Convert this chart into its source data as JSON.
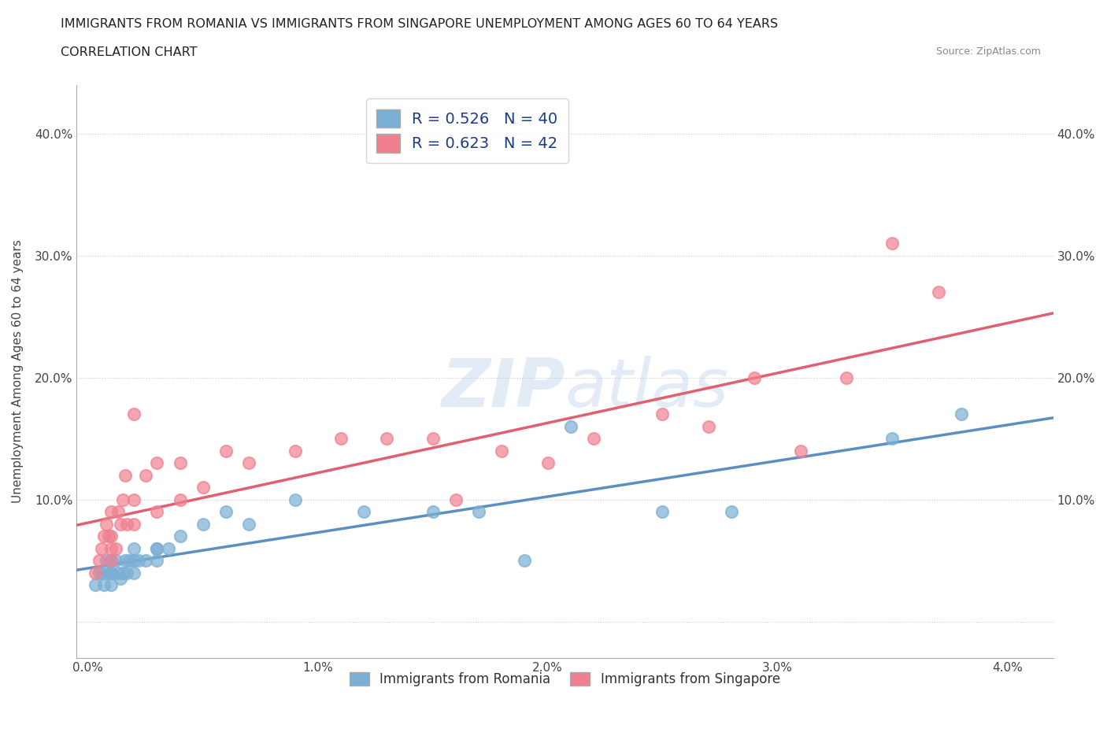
{
  "title_line1": "IMMIGRANTS FROM ROMANIA VS IMMIGRANTS FROM SINGAPORE UNEMPLOYMENT AMONG AGES 60 TO 64 YEARS",
  "title_line2": "CORRELATION CHART",
  "source": "Source: ZipAtlas.com",
  "ylabel": "Unemployment Among Ages 60 to 64 years",
  "xlim": [
    -0.0005,
    0.042
  ],
  "ylim": [
    -0.03,
    0.44
  ],
  "xticks": [
    0.0,
    0.01,
    0.02,
    0.03,
    0.04
  ],
  "xtick_labels": [
    "0.0%",
    "1.0%",
    "2.0%",
    "3.0%",
    "4.0%"
  ],
  "yticks": [
    0.0,
    0.1,
    0.2,
    0.3,
    0.4
  ],
  "ytick_labels": [
    "",
    "10.0%",
    "20.0%",
    "30.0%",
    "40.0%"
  ],
  "right_ytick_labels": [
    "",
    "10.0%",
    "20.0%",
    "30.0%",
    "40.0%"
  ],
  "romania_color": "#7bafd4",
  "singapore_color": "#f08090",
  "romania_line_color": "#5b8fc4",
  "singapore_line_color": "#e06070",
  "romania_R": 0.526,
  "romania_N": 40,
  "singapore_R": 0.623,
  "singapore_N": 42,
  "legend_text_color": "#1a3a8a",
  "romania_x": [
    0.0003,
    0.0005,
    0.0006,
    0.0007,
    0.0008,
    0.0009,
    0.001,
    0.001,
    0.001,
    0.001,
    0.0012,
    0.0013,
    0.0014,
    0.0015,
    0.0016,
    0.0017,
    0.0018,
    0.002,
    0.002,
    0.002,
    0.0022,
    0.0025,
    0.003,
    0.003,
    0.003,
    0.0035,
    0.004,
    0.005,
    0.006,
    0.007,
    0.009,
    0.012,
    0.015,
    0.017,
    0.019,
    0.021,
    0.025,
    0.028,
    0.035,
    0.038
  ],
  "romania_y": [
    0.03,
    0.04,
    0.04,
    0.03,
    0.05,
    0.04,
    0.04,
    0.05,
    0.03,
    0.04,
    0.05,
    0.04,
    0.035,
    0.04,
    0.05,
    0.04,
    0.05,
    0.05,
    0.04,
    0.06,
    0.05,
    0.05,
    0.06,
    0.05,
    0.06,
    0.06,
    0.07,
    0.08,
    0.09,
    0.08,
    0.1,
    0.09,
    0.09,
    0.09,
    0.05,
    0.16,
    0.09,
    0.09,
    0.15,
    0.17
  ],
  "singapore_x": [
    0.0003,
    0.0005,
    0.0006,
    0.0007,
    0.0008,
    0.0009,
    0.001,
    0.001,
    0.001,
    0.001,
    0.0012,
    0.0013,
    0.0014,
    0.0015,
    0.0016,
    0.0017,
    0.002,
    0.002,
    0.002,
    0.0025,
    0.003,
    0.003,
    0.004,
    0.004,
    0.005,
    0.006,
    0.007,
    0.009,
    0.011,
    0.013,
    0.015,
    0.016,
    0.018,
    0.02,
    0.022,
    0.025,
    0.027,
    0.029,
    0.031,
    0.033,
    0.035,
    0.037
  ],
  "singapore_y": [
    0.04,
    0.05,
    0.06,
    0.07,
    0.08,
    0.07,
    0.05,
    0.07,
    0.06,
    0.09,
    0.06,
    0.09,
    0.08,
    0.1,
    0.12,
    0.08,
    0.08,
    0.1,
    0.17,
    0.12,
    0.09,
    0.13,
    0.1,
    0.13,
    0.11,
    0.14,
    0.13,
    0.14,
    0.15,
    0.15,
    0.15,
    0.1,
    0.14,
    0.13,
    0.15,
    0.17,
    0.16,
    0.2,
    0.14,
    0.2,
    0.31,
    0.27
  ],
  "background_color": "#ffffff",
  "grid_color": "#cccccc"
}
